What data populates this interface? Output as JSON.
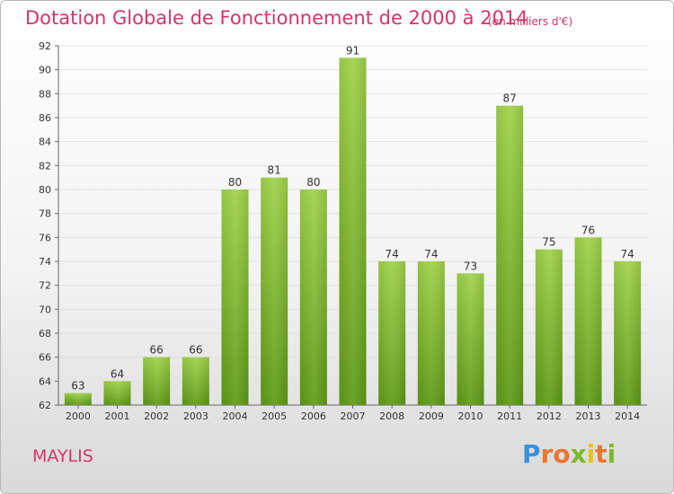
{
  "title": "Dotation Globale de Fonctionnement de 2000 à 2014",
  "unit_note": "(en milliers d'€)",
  "commune": "MAYLIS",
  "logo": {
    "text": "Proxiti",
    "colors": [
      "#3c8fd8",
      "#e8772e",
      "#7cb82f",
      "#e6c21e"
    ]
  },
  "chart_data": {
    "type": "bar",
    "title": "Dotation Globale de Fonctionnement de 2000 à 2014",
    "categories": [
      "2000",
      "2001",
      "2002",
      "2003",
      "2004",
      "2005",
      "2006",
      "2007",
      "2008",
      "2009",
      "2010",
      "2011",
      "2012",
      "2013",
      "2014"
    ],
    "values": [
      63,
      64,
      66,
      66,
      80,
      81,
      80,
      91,
      74,
      74,
      73,
      87,
      75,
      76,
      74
    ],
    "xlabel": "",
    "ylabel": "",
    "ylim": [
      62,
      92
    ],
    "yticks": [
      62,
      64,
      66,
      68,
      70,
      72,
      74,
      76,
      78,
      80,
      82,
      84,
      86,
      88,
      90,
      92
    ],
    "grid": true,
    "bar_color": "#7cb82f"
  }
}
